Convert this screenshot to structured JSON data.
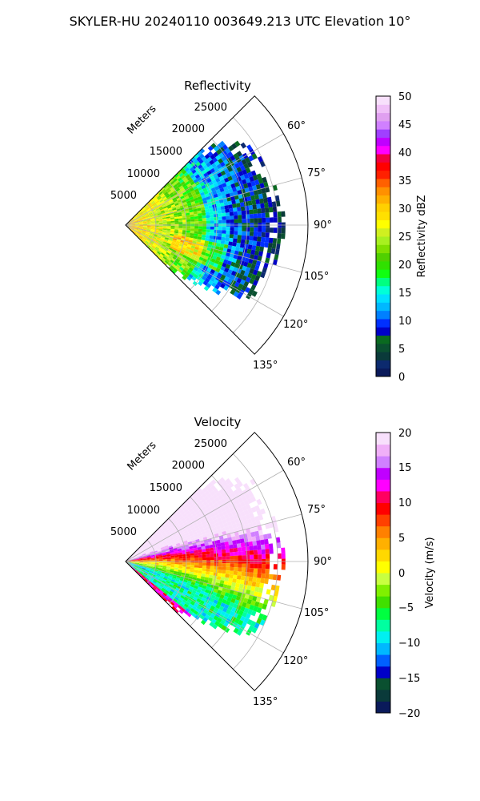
{
  "title": "SKYLER-HU  20240110  003649.213 UTC Elevation 10°",
  "chart_data": [
    {
      "type": "heatmap",
      "title": "Reflectivity",
      "projection": "polar sector",
      "radial_label": "Meters",
      "radial_ticks": [
        5000,
        10000,
        15000,
        20000,
        25000
      ],
      "radial_range": [
        0,
        30000
      ],
      "angle_ticks": [
        "60°",
        "75°",
        "90°",
        "105°",
        "120°",
        "135°"
      ],
      "angle_range": [
        45,
        135
      ],
      "grid": true,
      "colorbar": {
        "label": "Reflectivity dBZ",
        "range": [
          0,
          50
        ],
        "ticks": [
          "0",
          "5",
          "10",
          "15",
          "20",
          "25",
          "30",
          "35",
          "40",
          "45",
          "50"
        ],
        "colors": [
          "#0a1a5a",
          "#0c2a6e",
          "#0a3a3a",
          "#0a5030",
          "#0a6a20",
          "#0000c8",
          "#0030ff",
          "#0080ff",
          "#00b8ff",
          "#00e0ff",
          "#00ffd8",
          "#00ff80",
          "#10ff10",
          "#30e000",
          "#50d000",
          "#80e000",
          "#a8f020",
          "#d0f020",
          "#ffff00",
          "#ffe000",
          "#ffd000",
          "#ffb000",
          "#ff9000",
          "#ff6000",
          "#ff2000",
          "#ff0000",
          "#f00040",
          "#ff00ff",
          "#c000ff",
          "#a040ff",
          "#d080ff",
          "#e0a0f0",
          "#f0c0f8",
          "#f8e0fc"
        ]
      }
    },
    {
      "type": "heatmap",
      "title": "Velocity",
      "projection": "polar sector",
      "radial_label": "Meters",
      "radial_ticks": [
        5000,
        10000,
        15000,
        20000,
        25000
      ],
      "radial_range": [
        0,
        30000
      ],
      "angle_ticks": [
        "60°",
        "75°",
        "90°",
        "105°",
        "120°",
        "135°"
      ],
      "angle_range": [
        45,
        135
      ],
      "grid": true,
      "colorbar": {
        "label": "Velocity (m/s)",
        "range": [
          -20,
          20
        ],
        "ticks": [
          "−20",
          "−15",
          "−10",
          "−5",
          "0",
          "5",
          "10",
          "15",
          "20"
        ],
        "colors": [
          "#0a1a5a",
          "#0a3a3a",
          "#0a5030",
          "#0000c8",
          "#0060ff",
          "#00b8ff",
          "#00f0f0",
          "#00ffa0",
          "#00ff40",
          "#40e000",
          "#80f000",
          "#c8ff40",
          "#ffff00",
          "#ffd800",
          "#ffb000",
          "#ff8000",
          "#ff4000",
          "#ff0000",
          "#ff0060",
          "#ff00ff",
          "#c000ff",
          "#d080ff",
          "#f0b0f8",
          "#f8e0fc"
        ]
      }
    }
  ]
}
